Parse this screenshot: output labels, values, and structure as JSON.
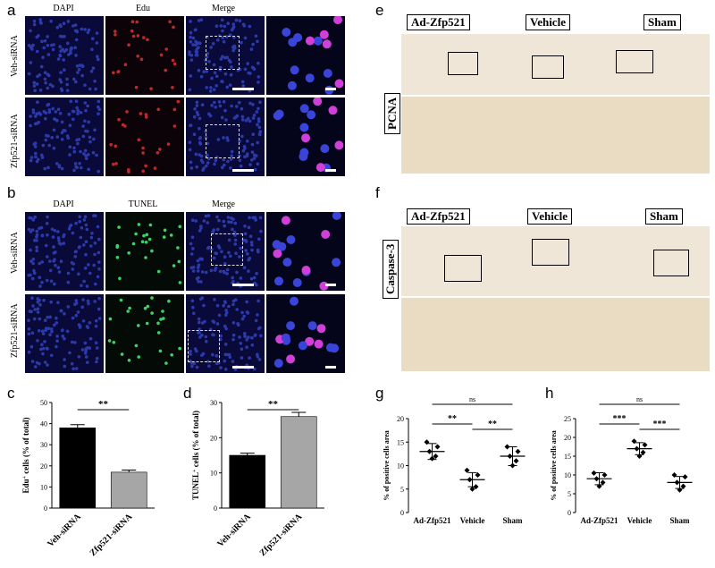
{
  "panels": {
    "a": {
      "label": "a",
      "cols": [
        "DAPI",
        "Edu",
        "Merge"
      ],
      "rows": [
        "Veh-siRNA",
        "Zfp521-siRNA"
      ]
    },
    "b": {
      "label": "b",
      "cols": [
        "DAPI",
        "TUNEL",
        "Merge"
      ],
      "rows": [
        "Veh-siRNA",
        "Zfp521-siRNA"
      ]
    },
    "e": {
      "label": "e",
      "heads": [
        "Ad-Zfp521",
        "Vehicle",
        "Sham"
      ],
      "side": "PCNA"
    },
    "f": {
      "label": "f",
      "heads": [
        "Ad-Zfp521",
        "Vehicle",
        "Sham"
      ],
      "side": "Caspase-3"
    },
    "c": {
      "label": "c"
    },
    "d": {
      "label": "d"
    },
    "g": {
      "label": "g"
    },
    "h": {
      "label": "h"
    }
  },
  "chart_data": [
    {
      "id": "c",
      "type": "bar",
      "categories": [
        "Veh-siRNA",
        "Zfp521-siRNA"
      ],
      "values": [
        38,
        17
      ],
      "errors": [
        1.5,
        1
      ],
      "colors": [
        "#000000",
        "#a6a6a6"
      ],
      "ylabel_main": "Edu",
      "ylabel_sup": "+",
      "ylabel_rest": " cells (% of total)",
      "ylim": [
        0,
        50
      ],
      "yticks": [
        0,
        10,
        20,
        30,
        40,
        50
      ],
      "significance": [
        {
          "pair": [
            0,
            1
          ],
          "label": "**"
        }
      ]
    },
    {
      "id": "d",
      "type": "bar",
      "categories": [
        "Veh-siRNA",
        "Zfp521-siRNA"
      ],
      "values": [
        15,
        26
      ],
      "errors": [
        0.6,
        1.2
      ],
      "colors": [
        "#000000",
        "#a6a6a6"
      ],
      "ylabel_main": "TUNEL",
      "ylabel_sup": "+",
      "ylabel_rest": " cells (% of total)",
      "ylim": [
        0,
        30
      ],
      "yticks": [
        0,
        10,
        20,
        30
      ],
      "significance": [
        {
          "pair": [
            0,
            1
          ],
          "label": "**"
        }
      ]
    },
    {
      "id": "g",
      "type": "scatter",
      "categories": [
        "Ad-Zfp521",
        "Vehicle",
        "Sham"
      ],
      "points": [
        [
          15,
          14,
          13,
          12,
          11.5
        ],
        [
          9,
          8,
          7,
          5.5,
          5
        ],
        [
          14,
          13,
          12,
          11,
          10
        ]
      ],
      "means": [
        13,
        7,
        12
      ],
      "sds": [
        1.7,
        1.5,
        2
      ],
      "ylabel": "% of positive cells area",
      "ylim": [
        0,
        20
      ],
      "yticks": [
        0,
        5,
        10,
        15,
        20
      ],
      "significance": [
        {
          "pair": [
            0,
            2
          ],
          "label": "ns"
        },
        {
          "pair": [
            0,
            1
          ],
          "label": "**"
        },
        {
          "pair": [
            1,
            2
          ],
          "label": "**"
        }
      ]
    },
    {
      "id": "h",
      "type": "scatter",
      "categories": [
        "Ad-Zfp521",
        "Vehicle",
        "Sham"
      ],
      "points": [
        [
          10.5,
          10,
          9,
          8,
          7
        ],
        [
          19,
          18,
          17,
          16,
          15
        ],
        [
          10,
          9.5,
          8,
          7,
          6
        ]
      ],
      "means": [
        9,
        17,
        8
      ],
      "sds": [
        1.6,
        1.6,
        1.6
      ],
      "ylabel": "% of positive cells area",
      "ylim": [
        0,
        25
      ],
      "yticks": [
        0,
        5,
        10,
        15,
        20,
        25
      ],
      "significance": [
        {
          "pair": [
            0,
            2
          ],
          "label": "ns"
        },
        {
          "pair": [
            0,
            1
          ],
          "label": "***"
        },
        {
          "pair": [
            1,
            2
          ],
          "label": "***"
        }
      ]
    }
  ]
}
